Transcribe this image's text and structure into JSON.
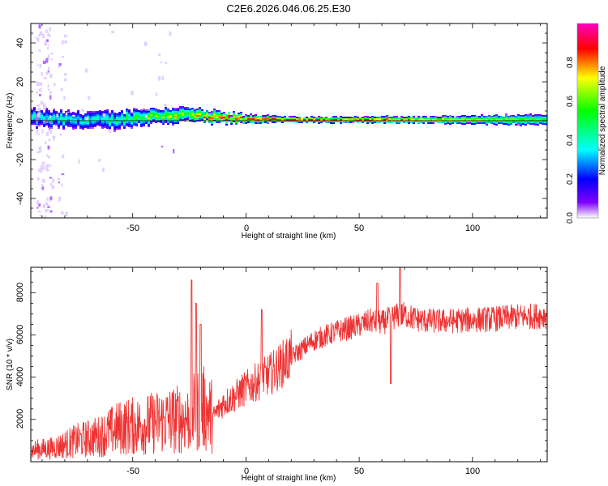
{
  "title": "C2E6.2026.046.06.25.E30",
  "chart_data": [
    {
      "type": "heatmap",
      "xlabel": "Height of straight line (km)",
      "ylabel": "Frequency (Hz)",
      "xlim": [
        -95,
        133
      ],
      "ylim": [
        -50,
        50
      ],
      "xticks": [
        -50,
        0,
        50,
        100
      ],
      "xtick_labels": [
        "-50",
        "0",
        "50",
        "100"
      ],
      "yticks": [
        -40,
        -20,
        0,
        20,
        40
      ],
      "ytick_labels": [
        "-40",
        "-20",
        "0",
        "20",
        "40"
      ],
      "colorbar": {
        "label": "Normalized spectral amplitude",
        "range": [
          0,
          1
        ],
        "ticks": [
          0.0,
          0.2,
          0.4,
          0.6,
          0.8
        ],
        "tick_labels": [
          "0.0",
          "0.2",
          "0.4",
          "0.6",
          "0.8"
        ],
        "colors": [
          "#ffffff",
          "#7f00ff",
          "#0000ff",
          "#00ffff",
          "#00ff00",
          "#ffff00",
          "#ff0000",
          "#ff00c0"
        ]
      },
      "band": {
        "center_hz": [
          [
            -95,
            1.5
          ],
          [
            -80,
            0.5
          ],
          [
            -60,
            0.2
          ],
          [
            -40,
            2.5
          ],
          [
            -25,
            3
          ],
          [
            -15,
            1.5
          ],
          [
            -5,
            1
          ],
          [
            20,
            0.4
          ],
          [
            133,
            0.4
          ]
        ],
        "halfwidth_hz": [
          [
            -95,
            4.5
          ],
          [
            -60,
            4.5
          ],
          [
            -30,
            4
          ],
          [
            -12,
            3
          ],
          [
            -5,
            2.5
          ],
          [
            20,
            1.5
          ],
          [
            80,
            1.8
          ],
          [
            133,
            2.8
          ]
        ],
        "peak_amplitude": [
          [
            -95,
            0.4
          ],
          [
            -60,
            0.45
          ],
          [
            -40,
            0.6
          ],
          [
            -25,
            0.7
          ],
          [
            -12,
            0.85
          ],
          [
            0,
            0.92
          ],
          [
            20,
            0.97
          ],
          [
            60,
            0.9
          ],
          [
            133,
            0.6
          ]
        ]
      },
      "scatter_region": {
        "x_range": [
          -93,
          -80
        ],
        "freq_range": [
          -50,
          50
        ]
      }
    },
    {
      "type": "line",
      "xlabel": "Height of straight line (km)",
      "ylabel": "SNR (10 * v/v)",
      "xlim": [
        -95,
        133
      ],
      "ylim": [
        0,
        9200
      ],
      "xticks": [
        -50,
        0,
        50,
        100
      ],
      "xtick_labels": [
        "-50",
        "0",
        "50",
        "100"
      ],
      "yticks": [
        2000,
        4000,
        6000,
        8000
      ],
      "ytick_labels": [
        "2000",
        "4000",
        "6000",
        "8000"
      ],
      "series": [
        {
          "color": "#ee3333",
          "x": [
            -95,
            -85,
            -75,
            -65,
            -55,
            -45,
            -35,
            -25,
            -20,
            -15,
            -10,
            -5,
            0,
            5,
            10,
            15,
            20,
            25,
            30,
            35,
            40,
            45,
            50,
            55,
            60,
            65,
            70,
            75,
            80,
            90,
            100,
            110,
            120,
            133
          ],
          "y": [
            500,
            600,
            900,
            1100,
            1500,
            1600,
            1800,
            1900,
            2400,
            2000,
            2700,
            3000,
            3400,
            3700,
            4000,
            4400,
            4900,
            5300,
            5700,
            5900,
            6100,
            6250,
            6400,
            6600,
            6500,
            6800,
            6900,
            6700,
            6600,
            6600,
            6650,
            6700,
            6800,
            6850
          ]
        }
      ],
      "spikes": [
        {
          "x": -24,
          "y": 8600
        },
        {
          "x": -22,
          "y": 7500
        },
        {
          "x": -20,
          "y": 6500
        },
        {
          "x": 7,
          "y": 7200
        },
        {
          "x": 58,
          "y": 8450
        },
        {
          "x": 68,
          "y": 9200
        },
        {
          "x": 64,
          "y": 3700
        }
      ]
    }
  ]
}
